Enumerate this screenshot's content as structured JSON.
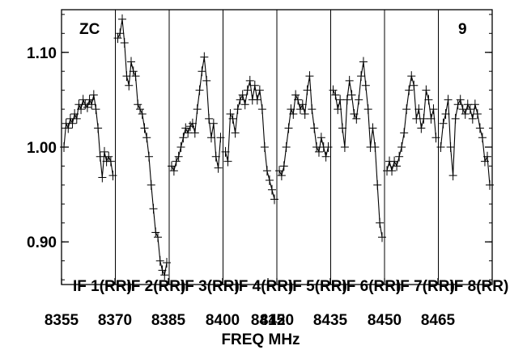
{
  "chart_data": {
    "type": "line",
    "title": "",
    "xlabel": "FREQ MHz",
    "ylabel": "",
    "corner_labels": {
      "left": "ZC",
      "right": "9"
    },
    "ylim": [
      0.855,
      1.145
    ],
    "yticks": [
      {
        "value": 0.9,
        "label": "0.90"
      },
      {
        "value": 1.0,
        "label": "1.00"
      },
      {
        "value": 1.1,
        "label": "1.10"
      }
    ],
    "xticks": [
      "8355",
      "8370",
      "8385",
      "8400",
      "8415",
      "8420",
      "8435",
      "8450",
      "8465"
    ],
    "marker": "plus",
    "grid": false,
    "line_color": "#000000",
    "panels": [
      {
        "label": "IF 1(RR)",
        "values": [
          1.0,
          1.025,
          1.02,
          1.03,
          1.025,
          1.035,
          1.03,
          1.045,
          1.04,
          1.05,
          1.045,
          1.042,
          1.05,
          1.045,
          1.055,
          1.04,
          1.02,
          0.99,
          0.968,
          0.995,
          0.985,
          0.99,
          0.985,
          0.97
        ]
      },
      {
        "label": "IF 2(RR)",
        "values": [
          1.115,
          1.12,
          1.135,
          1.11,
          1.075,
          1.065,
          1.09,
          1.08,
          1.075,
          1.045,
          1.04,
          1.035,
          1.02,
          1.01,
          0.99,
          0.96,
          0.935,
          0.91,
          0.905,
          0.88,
          0.87,
          0.865,
          0.878
        ]
      },
      {
        "label": "IF 3(RR)",
        "values": [
          0.98,
          0.975,
          0.985,
          0.99,
          1.0,
          1.01,
          1.02,
          1.015,
          1.022,
          1.025,
          1.015,
          1.04,
          1.06,
          1.08,
          1.095,
          1.07,
          1.03,
          1.01,
          1.025,
          0.99,
          0.978,
          1.01
        ]
      },
      {
        "label": "IF 4(RR)",
        "values": [
          0.995,
          0.985,
          1.035,
          1.03,
          1.015,
          1.04,
          1.05,
          1.055,
          1.045,
          1.06,
          1.07,
          1.05,
          1.065,
          1.05,
          1.06,
          1.04,
          1.0,
          0.975,
          0.965,
          0.955,
          0.945
        ]
      },
      {
        "label": "IF 5(RR)",
        "values": [
          0.975,
          0.97,
          0.98,
          1.0,
          1.02,
          1.04,
          1.035,
          1.055,
          1.05,
          1.04,
          1.045,
          1.035,
          1.06,
          1.075,
          1.04,
          1.02,
          1.0,
          0.995,
          1.01,
          1.0,
          0.99,
          1.0
        ]
      },
      {
        "label": "IF 6(RR)",
        "values": [
          1.06,
          1.055,
          1.04,
          1.05,
          1.02,
          1.0,
          1.05,
          1.07,
          1.055,
          1.035,
          1.03,
          1.05,
          1.075,
          1.09,
          1.065,
          1.04,
          1.0,
          1.02,
          1.0,
          0.96,
          0.92,
          0.905
        ]
      },
      {
        "label": "IF 7(RR)",
        "values": [
          0.975,
          0.985,
          0.975,
          0.985,
          0.98,
          0.99,
          1.0,
          1.015,
          1.04,
          1.06,
          1.075,
          1.065,
          1.03,
          1.04,
          1.02,
          1.03,
          1.06,
          1.05,
          1.03,
          1.04,
          1.01
        ]
      },
      {
        "label": "IF 8(RR)",
        "values": [
          1.0,
          1.025,
          1.035,
          1.05,
          1.0,
          0.97,
          1.03,
          1.045,
          1.05,
          1.04,
          1.035,
          1.045,
          1.04,
          1.03,
          1.045,
          1.035,
          1.02,
          1.01,
          0.985,
          0.99,
          0.96
        ]
      }
    ]
  }
}
